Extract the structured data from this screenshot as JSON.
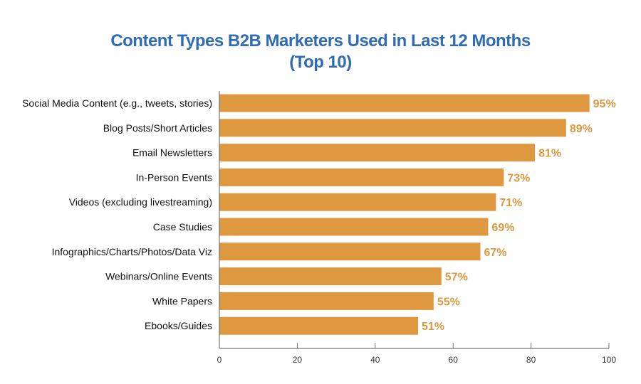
{
  "chart_data": {
    "type": "bar",
    "orientation": "horizontal",
    "title": "Content Types B2B Marketers Used in Last 12 Months",
    "subtitle": "(Top 10)",
    "categories": [
      "Social Media Content (e.g., tweets, stories)",
      "Blog Posts/Short Articles",
      "Email Newsletters",
      "In-Person Events",
      "Videos (excluding livestreaming)",
      "Case Studies",
      "Infographics/Charts/Photos/Data Viz",
      "Webinars/Online Events",
      "White Papers",
      "Ebooks/Guides"
    ],
    "values": [
      95,
      89,
      81,
      73,
      71,
      69,
      67,
      57,
      55,
      51
    ],
    "value_labels": [
      "95%",
      "89%",
      "81%",
      "73%",
      "71%",
      "69%",
      "67%",
      "57%",
      "55%",
      "51%"
    ],
    "xlim": [
      0,
      100
    ],
    "xticks": [
      "0",
      "20",
      "40",
      "60",
      "80",
      "100"
    ],
    "xlabel": "",
    "ylabel": "",
    "grid": false,
    "colors": {
      "bar": "#de9840",
      "title": "#2f6cb3",
      "axis": "#777777"
    }
  }
}
